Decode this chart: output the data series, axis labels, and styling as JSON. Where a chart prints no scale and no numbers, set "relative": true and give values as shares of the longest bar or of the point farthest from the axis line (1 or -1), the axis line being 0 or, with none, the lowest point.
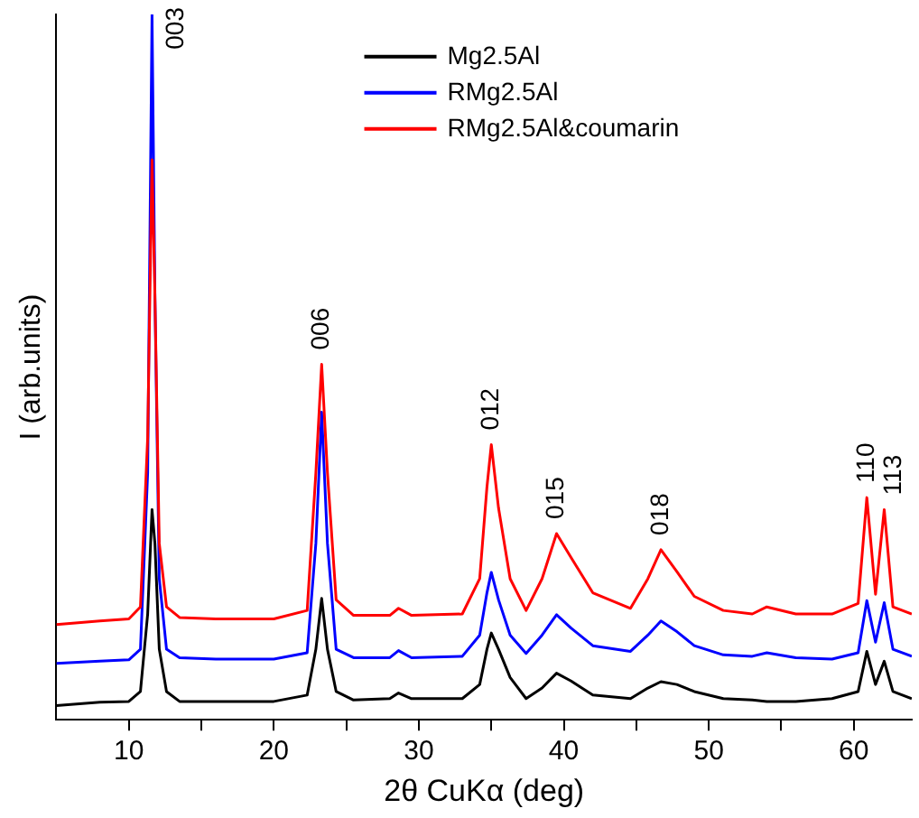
{
  "chart_data": {
    "type": "line",
    "xlabel": "2θ CuKα (deg)",
    "ylabel": "I (arb.units)",
    "relative": true,
    "grid": false,
    "legend": "top right",
    "marker": "none",
    "line_style": "solid",
    "xlim": [
      5,
      64
    ],
    "xticks": [
      10,
      {
        "value": 15,
        "label": null
      },
      20,
      {
        "value": 25,
        "label": null
      },
      30,
      {
        "value": 35,
        "label": null
      },
      40,
      {
        "value": 45,
        "label": null
      },
      50,
      {
        "value": 55,
        "label": null
      },
      60
    ],
    "x": [
      5,
      8,
      10,
      10.8,
      11.3,
      11.6,
      11.8,
      12.1,
      12.6,
      13.5,
      16,
      20,
      22.3,
      22.9,
      23.3,
      23.7,
      24.3,
      25.5,
      28,
      28.6,
      29.5,
      33,
      34.2,
      34.7,
      35.0,
      35.5,
      36.3,
      37.4,
      38.5,
      39.5,
      40.5,
      42,
      44.6,
      45.8,
      46.7,
      47.8,
      49,
      51,
      53,
      54,
      56,
      58.5,
      60.3,
      60.9,
      61.5,
      62.1,
      62.7,
      64
    ],
    "series": [
      {
        "name": "Mg2.5Al",
        "color": "#000000",
        "values": [
          0.02,
          0.025,
          0.026,
          0.04,
          0.15,
          0.298,
          0.25,
          0.1,
          0.04,
          0.026,
          0.026,
          0.026,
          0.035,
          0.1,
          0.172,
          0.1,
          0.04,
          0.028,
          0.03,
          0.038,
          0.03,
          0.03,
          0.05,
          0.1,
          0.123,
          0.1,
          0.06,
          0.03,
          0.045,
          0.066,
          0.055,
          0.035,
          0.03,
          0.045,
          0.054,
          0.05,
          0.04,
          0.03,
          0.028,
          0.026,
          0.026,
          0.03,
          0.04,
          0.097,
          0.05,
          0.083,
          0.04,
          0.03
        ]
      },
      {
        "name": "RMg2.5Al",
        "color": "#0000ff",
        "values": [
          0.08,
          0.083,
          0.085,
          0.1,
          0.35,
          1.0,
          0.6,
          0.2,
          0.1,
          0.088,
          0.086,
          0.086,
          0.095,
          0.25,
          0.436,
          0.25,
          0.1,
          0.088,
          0.088,
          0.098,
          0.088,
          0.09,
          0.12,
          0.18,
          0.209,
          0.17,
          0.12,
          0.094,
          0.12,
          0.149,
          0.13,
          0.105,
          0.097,
          0.12,
          0.14,
          0.125,
          0.105,
          0.092,
          0.09,
          0.095,
          0.088,
          0.086,
          0.095,
          0.169,
          0.11,
          0.166,
          0.1,
          0.09
        ]
      },
      {
        "name": "RMg2.5Al&coumarin",
        "color": "#ff0000",
        "values": [
          0.135,
          0.14,
          0.143,
          0.16,
          0.4,
          0.794,
          0.6,
          0.25,
          0.16,
          0.145,
          0.143,
          0.143,
          0.155,
          0.35,
          0.504,
          0.35,
          0.17,
          0.148,
          0.148,
          0.158,
          0.148,
          0.15,
          0.2,
          0.33,
          0.39,
          0.3,
          0.2,
          0.155,
          0.2,
          0.264,
          0.23,
          0.18,
          0.158,
          0.2,
          0.241,
          0.21,
          0.175,
          0.155,
          0.15,
          0.16,
          0.15,
          0.15,
          0.165,
          0.315,
          0.178,
          0.298,
          0.16,
          0.15
        ]
      }
    ],
    "annotations": [
      {
        "text": "003",
        "x": 11.8,
        "y": 1.0
      },
      {
        "text": "006",
        "x": 23.3,
        "y": 0.504
      },
      {
        "text": "012",
        "x": 35.0,
        "y": 0.39
      },
      {
        "text": "015",
        "x": 39.5,
        "y": 0.264
      },
      {
        "text": "018",
        "x": 46.7,
        "y": 0.241
      },
      {
        "text": "110",
        "x": 60.9,
        "y": 0.315
      },
      {
        "text": "113",
        "x": 62.1,
        "y": 0.298
      }
    ]
  }
}
